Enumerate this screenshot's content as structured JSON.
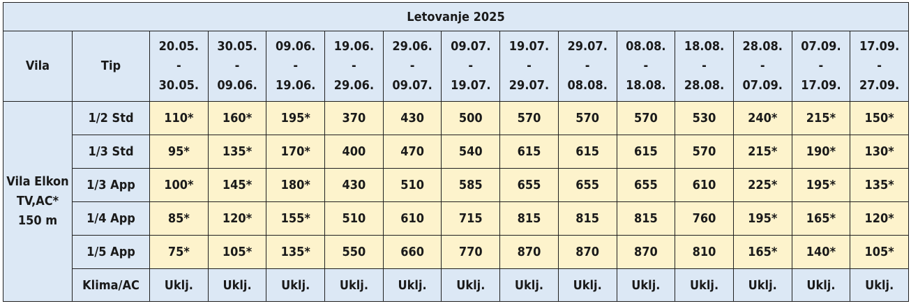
{
  "title": "Letovanje 2025",
  "headers": {
    "vila": "Vila",
    "tip": "Tip"
  },
  "periods": [
    {
      "from": "20.05.",
      "sep": "-",
      "to": "30.05."
    },
    {
      "from": "30.05.",
      "sep": "-",
      "to": "09.06."
    },
    {
      "from": "09.06.",
      "sep": "-",
      "to": "19.06."
    },
    {
      "from": "19.06.",
      "sep": "-",
      "to": "29.06."
    },
    {
      "from": "29.06.",
      "sep": "-",
      "to": "09.07."
    },
    {
      "from": "09.07.",
      "sep": "-",
      "to": "19.07."
    },
    {
      "from": "19.07.",
      "sep": "-",
      "to": "29.07."
    },
    {
      "from": "29.07.",
      "sep": "-",
      "to": "08.08."
    },
    {
      "from": "08.08.",
      "sep": "-",
      "to": "18.08."
    },
    {
      "from": "18.08.",
      "sep": "-",
      "to": "28.08."
    },
    {
      "from": "28.08.",
      "sep": "-",
      "to": "07.09."
    },
    {
      "from": "07.09.",
      "sep": "-",
      "to": "17.09."
    },
    {
      "from": "17.09.",
      "sep": "-",
      "to": "27.09."
    }
  ],
  "villa": {
    "line1": "Vila Elkon",
    "line2": "TV,AC*",
    "line3": "150 m"
  },
  "rows": [
    {
      "type": "1/2 Std",
      "prices": [
        "110*",
        "160*",
        "195*",
        "370",
        "430",
        "500",
        "570",
        "570",
        "570",
        "530",
        "240*",
        "215*",
        "150*"
      ]
    },
    {
      "type": "1/3 Std",
      "prices": [
        "95*",
        "135*",
        "170*",
        "400",
        "470",
        "540",
        "615",
        "615",
        "615",
        "570",
        "215*",
        "190*",
        "130*"
      ]
    },
    {
      "type": "1/3 App",
      "prices": [
        "100*",
        "145*",
        "180*",
        "430",
        "510",
        "585",
        "655",
        "655",
        "655",
        "610",
        "225*",
        "195*",
        "135*"
      ]
    },
    {
      "type": "1/4 App",
      "prices": [
        "85*",
        "120*",
        "155*",
        "510",
        "610",
        "715",
        "815",
        "815",
        "815",
        "760",
        "195*",
        "165*",
        "120*"
      ]
    },
    {
      "type": "1/5 App",
      "prices": [
        "75*",
        "105*",
        "135*",
        "550",
        "660",
        "770",
        "870",
        "870",
        "870",
        "810",
        "165*",
        "140*",
        "105*"
      ]
    }
  ],
  "klima": {
    "label": "Klima/AC",
    "values": [
      "Uklj.",
      "Uklj.",
      "Uklj.",
      "Uklj.",
      "Uklj.",
      "Uklj.",
      "Uklj.",
      "Uklj.",
      "Uklj.",
      "Uklj.",
      "Uklj.",
      "Uklj.",
      "Uklj."
    ]
  }
}
